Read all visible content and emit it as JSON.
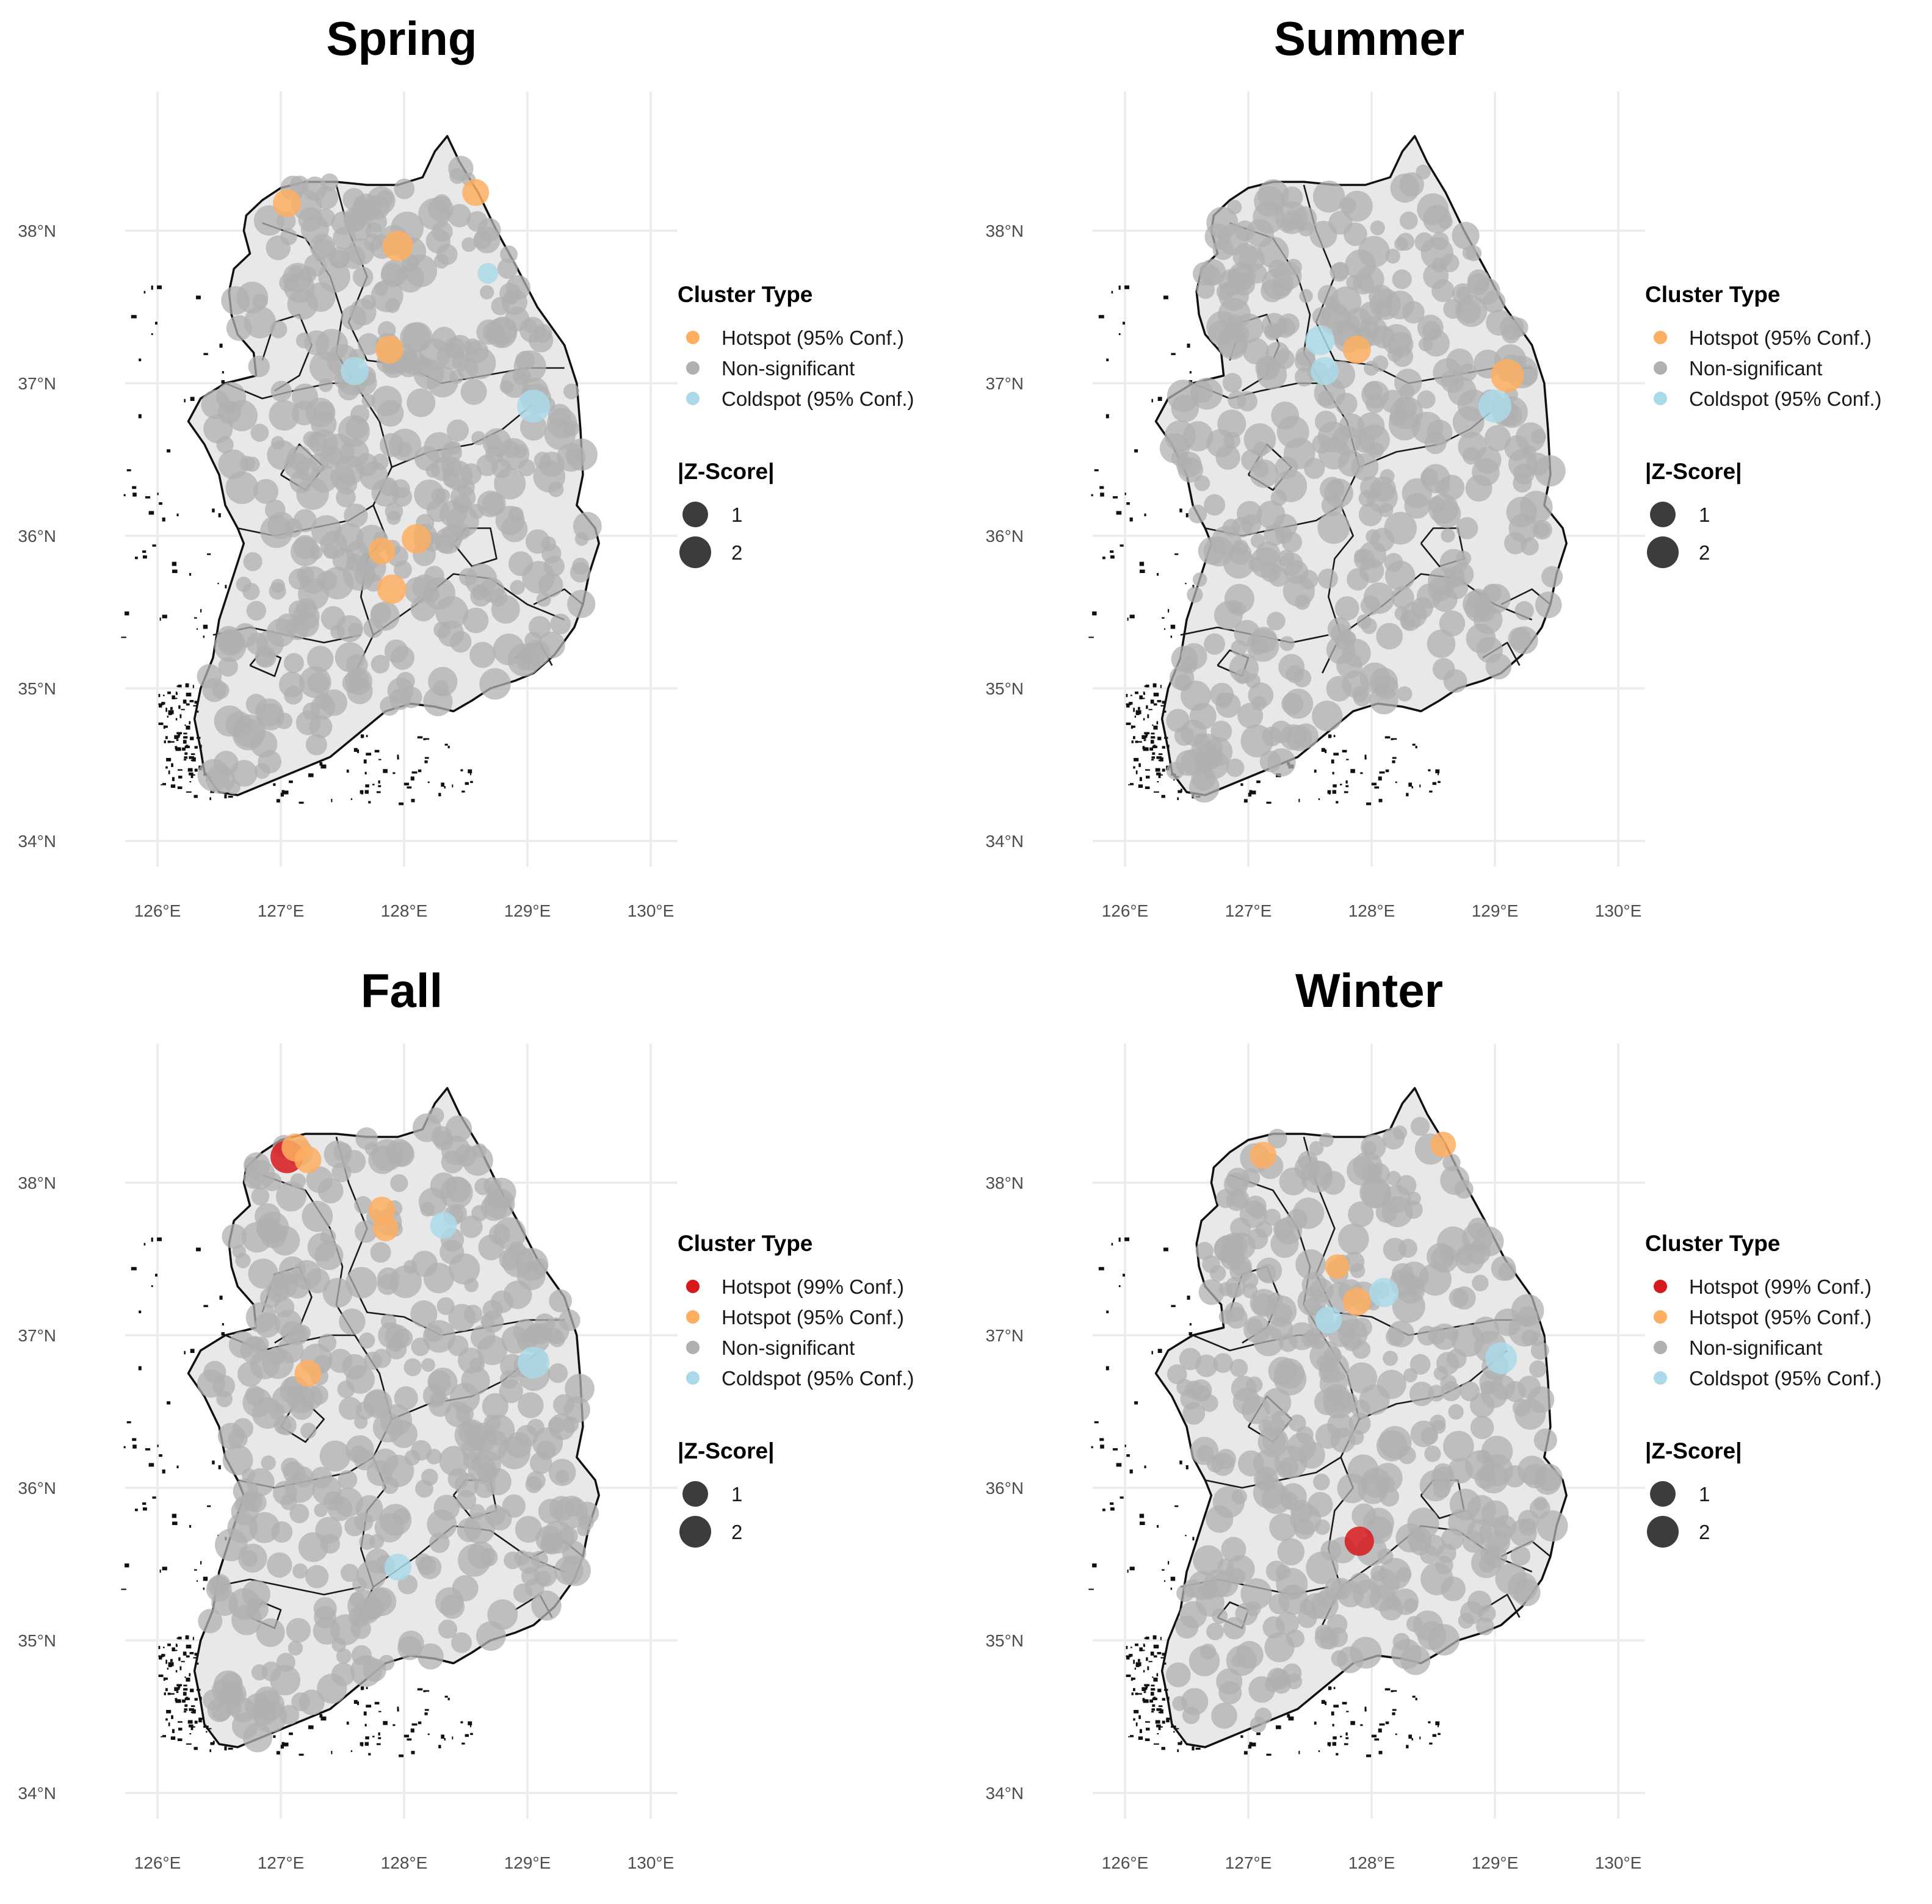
{
  "colors": {
    "hot99": "#d7191c",
    "hot95": "#fdae61",
    "nonsig": "#b0b0b0",
    "cold95": "#abd9e9",
    "land": "#e8e8e8",
    "grid": "#ebebeb",
    "size_key": "#1a1a1a"
  },
  "axes": {
    "x_ticks": [
      "126°E",
      "127°E",
      "128°E",
      "129°E",
      "130°E"
    ],
    "y_ticks": [
      "34°N",
      "35°N",
      "36°N",
      "37°N",
      "38°N"
    ],
    "x_values": [
      126,
      127,
      128,
      129,
      130
    ],
    "y_values": [
      34,
      35,
      36,
      37,
      38
    ]
  },
  "chart_data": [
    {
      "type": "scatter",
      "title": "Spring",
      "legend": {
        "cluster_title": "Cluster Type",
        "cluster_items": [
          {
            "label": "Hotspot (95% Conf.)",
            "key": "hot95"
          },
          {
            "label": "Non-significant",
            "key": "nonsig"
          },
          {
            "label": "Coldspot (95% Conf.)",
            "key": "cold95"
          }
        ],
        "size_title": "|Z-Score|",
        "size_items": [
          {
            "label": "1",
            "value": 1
          },
          {
            "label": "2",
            "value": 2
          }
        ]
      },
      "highlights": [
        {
          "lon": 127.05,
          "lat": 38.18,
          "type": "hot95",
          "z": 1.6
        },
        {
          "lon": 128.58,
          "lat": 38.25,
          "type": "hot95",
          "z": 1.5
        },
        {
          "lon": 127.95,
          "lat": 37.9,
          "type": "hot95",
          "z": 1.8
        },
        {
          "lon": 127.88,
          "lat": 37.22,
          "type": "hot95",
          "z": 1.6
        },
        {
          "lon": 128.1,
          "lat": 35.98,
          "type": "hot95",
          "z": 1.7
        },
        {
          "lon": 127.82,
          "lat": 35.9,
          "type": "hot95",
          "z": 1.5
        },
        {
          "lon": 127.9,
          "lat": 35.65,
          "type": "hot95",
          "z": 1.7
        },
        {
          "lon": 127.6,
          "lat": 37.08,
          "type": "cold95",
          "z": 1.6
        },
        {
          "lon": 129.05,
          "lat": 36.85,
          "type": "cold95",
          "z": 2.0
        },
        {
          "lon": 128.68,
          "lat": 37.72,
          "type": "cold95",
          "z": 1.0
        }
      ],
      "seed": 11
    },
    {
      "type": "scatter",
      "title": "Summer",
      "legend": {
        "cluster_title": "Cluster Type",
        "cluster_items": [
          {
            "label": "Hotspot (95% Conf.)",
            "key": "hot95"
          },
          {
            "label": "Non-significant",
            "key": "nonsig"
          },
          {
            "label": "Coldspot (95% Conf.)",
            "key": "cold95"
          }
        ],
        "size_title": "|Z-Score|",
        "size_items": [
          {
            "label": "1",
            "value": 1
          },
          {
            "label": "2",
            "value": 2
          }
        ]
      },
      "highlights": [
        {
          "lon": 127.88,
          "lat": 37.22,
          "type": "hot95",
          "z": 1.6
        },
        {
          "lon": 129.1,
          "lat": 37.05,
          "type": "hot95",
          "z": 2.0
        },
        {
          "lon": 127.58,
          "lat": 37.28,
          "type": "cold95",
          "z": 1.7
        },
        {
          "lon": 127.62,
          "lat": 37.08,
          "type": "cold95",
          "z": 1.6
        },
        {
          "lon": 129.0,
          "lat": 36.85,
          "type": "cold95",
          "z": 2.0
        }
      ],
      "seed": 23
    },
    {
      "type": "scatter",
      "title": "Fall",
      "legend": {
        "cluster_title": "Cluster Type",
        "cluster_items": [
          {
            "label": "Hotspot (99% Conf.)",
            "key": "hot99"
          },
          {
            "label": "Hotspot (95% Conf.)",
            "key": "hot95"
          },
          {
            "label": "Non-significant",
            "key": "nonsig"
          },
          {
            "label": "Coldspot (95% Conf.)",
            "key": "cold95"
          }
        ],
        "size_title": "|Z-Score|",
        "size_items": [
          {
            "label": "1",
            "value": 1
          },
          {
            "label": "2",
            "value": 2
          }
        ]
      },
      "highlights": [
        {
          "lon": 127.05,
          "lat": 38.17,
          "type": "hot99",
          "z": 2.0
        },
        {
          "lon": 127.12,
          "lat": 38.23,
          "type": "hot95",
          "z": 1.6
        },
        {
          "lon": 127.22,
          "lat": 38.15,
          "type": "hot95",
          "z": 1.5
        },
        {
          "lon": 127.82,
          "lat": 37.82,
          "type": "hot95",
          "z": 1.5
        },
        {
          "lon": 127.85,
          "lat": 37.7,
          "type": "hot95",
          "z": 1.4
        },
        {
          "lon": 127.22,
          "lat": 36.75,
          "type": "hot95",
          "z": 1.5
        },
        {
          "lon": 128.32,
          "lat": 37.72,
          "type": "cold95",
          "z": 1.5
        },
        {
          "lon": 129.05,
          "lat": 36.82,
          "type": "cold95",
          "z": 1.9
        },
        {
          "lon": 127.95,
          "lat": 35.48,
          "type": "cold95",
          "z": 1.5
        }
      ],
      "seed": 37
    },
    {
      "type": "scatter",
      "title": "Winter",
      "legend": {
        "cluster_title": "Cluster Type",
        "cluster_items": [
          {
            "label": "Hotspot (99% Conf.)",
            "key": "hot99"
          },
          {
            "label": "Hotspot (95% Conf.)",
            "key": "hot95"
          },
          {
            "label": "Non-significant",
            "key": "nonsig"
          },
          {
            "label": "Coldspot (95% Conf.)",
            "key": "cold95"
          }
        ],
        "size_title": "|Z-Score|",
        "size_items": [
          {
            "label": "1",
            "value": 1
          },
          {
            "label": "2",
            "value": 2
          }
        ]
      },
      "highlights": [
        {
          "lon": 127.12,
          "lat": 38.18,
          "type": "hot95",
          "z": 1.5
        },
        {
          "lon": 128.58,
          "lat": 38.25,
          "type": "hot95",
          "z": 1.4
        },
        {
          "lon": 127.72,
          "lat": 37.45,
          "type": "hot95",
          "z": 1.3
        },
        {
          "lon": 127.88,
          "lat": 37.22,
          "type": "hot95",
          "z": 1.6
        },
        {
          "lon": 127.9,
          "lat": 35.65,
          "type": "hot99",
          "z": 1.7
        },
        {
          "lon": 128.1,
          "lat": 37.28,
          "type": "cold95",
          "z": 1.7
        },
        {
          "lon": 127.65,
          "lat": 37.1,
          "type": "cold95",
          "z": 1.5
        },
        {
          "lon": 129.05,
          "lat": 36.85,
          "type": "cold95",
          "z": 1.9
        }
      ],
      "seed": 53
    }
  ]
}
